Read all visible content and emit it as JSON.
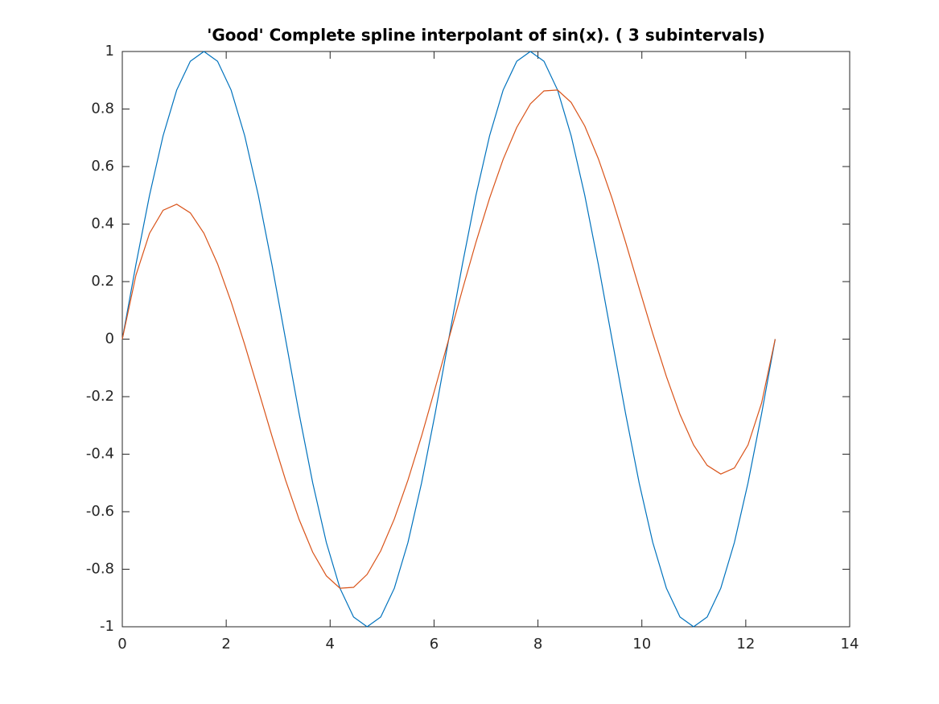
{
  "chart_data": {
    "type": "line",
    "title": "'Good' Complete spline interpolant of sin(x). ( 3 subintervals)",
    "x": [
      0,
      0.262,
      0.524,
      0.785,
      1.047,
      1.309,
      1.571,
      1.833,
      2.094,
      2.356,
      2.618,
      2.88,
      3.142,
      3.403,
      3.665,
      3.927,
      4.189,
      4.451,
      4.712,
      4.974,
      5.236,
      5.498,
      5.76,
      6.021,
      6.283,
      6.545,
      6.807,
      7.069,
      7.33,
      7.592,
      7.854,
      8.116,
      8.378,
      8.639,
      8.901,
      9.163,
      9.425,
      9.687,
      9.948,
      10.21,
      10.472,
      10.734,
      10.996,
      11.257,
      11.519,
      11.781,
      12.043,
      12.305,
      12.566
    ],
    "series": [
      {
        "color": "#0072BD",
        "values": [
          0,
          0.259,
          0.5,
          0.707,
          0.866,
          0.966,
          1,
          0.966,
          0.866,
          0.707,
          0.5,
          0.259,
          0,
          -0.259,
          -0.5,
          -0.707,
          -0.866,
          -0.966,
          -1,
          -0.966,
          -0.866,
          -0.707,
          -0.5,
          -0.259,
          0,
          0.259,
          0.5,
          0.707,
          0.866,
          0.966,
          1,
          0.966,
          0.866,
          0.707,
          0.5,
          0.259,
          0,
          -0.259,
          -0.5,
          -0.707,
          -0.866,
          -0.966,
          -1,
          -0.966,
          -0.866,
          -0.707,
          -0.5,
          -0.259,
          0
        ]
      },
      {
        "color": "#D95319",
        "values": [
          0,
          0.222,
          0.368,
          0.448,
          0.469,
          0.439,
          0.368,
          0.262,
          0.13,
          -0.019,
          -0.177,
          -0.337,
          -0.49,
          -0.627,
          -0.741,
          -0.823,
          -0.866,
          -0.863,
          -0.818,
          -0.736,
          -0.625,
          -0.49,
          -0.337,
          -0.171,
          0,
          0.171,
          0.337,
          0.49,
          0.625,
          0.736,
          0.818,
          0.863,
          0.866,
          0.823,
          0.741,
          0.627,
          0.49,
          0.337,
          0.177,
          0.019,
          -0.13,
          -0.262,
          -0.368,
          -0.439,
          -0.469,
          -0.448,
          -0.368,
          -0.222,
          0
        ]
      }
    ],
    "xlim": [
      0,
      14
    ],
    "ylim": [
      -1,
      1
    ],
    "xticks": [
      0,
      2,
      4,
      6,
      8,
      10,
      12,
      14
    ],
    "yticks": [
      -1,
      -0.8,
      -0.6,
      -0.4,
      -0.2,
      0,
      0.2,
      0.4,
      0.6,
      0.8,
      1
    ],
    "grid": false
  }
}
